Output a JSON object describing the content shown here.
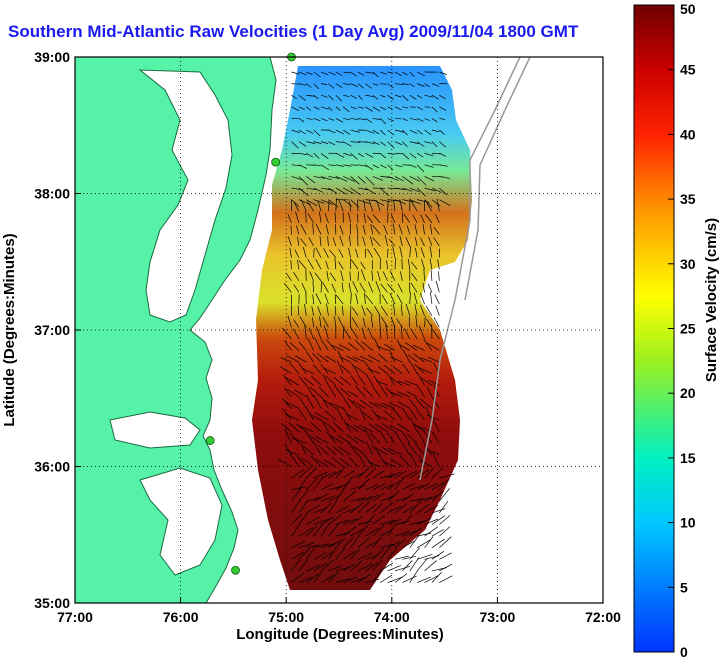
{
  "chart_data": {
    "type": "heatmap",
    "title": "Southern Mid-Atlantic Raw Velocities (1 Day Avg) 2009/11/04 1800 GMT",
    "xlabel": "Longitude (Degrees:Minutes)",
    "ylabel": "Latitude (Degrees:Minutes)",
    "xlim": [
      -77,
      -72
    ],
    "ylim": [
      35,
      39
    ],
    "x_ticks": [
      "77:00",
      "76:00",
      "75:00",
      "74:00",
      "73:00",
      "72:00"
    ],
    "y_ticks": [
      "39:00",
      "38:00",
      "37:00",
      "36:00",
      "35:00"
    ],
    "colorbar": {
      "label": "Surface Velocity (cm/s)",
      "range": [
        0,
        50
      ],
      "ticks": [
        "0",
        "5",
        "10",
        "15",
        "20",
        "25",
        "30",
        "35",
        "40",
        "45",
        "50"
      ]
    },
    "grid": true,
    "colors": {
      "land": "#55f2a8",
      "title": "#1a1aee",
      "station": "#33cc33"
    },
    "field_zones": [
      {
        "lat": [
          38.55,
          38.9
        ],
        "speed": 8
      },
      {
        "lat": [
          38.2,
          38.55
        ],
        "speed": 14
      },
      {
        "lat": [
          37.8,
          38.2
        ],
        "speed": 30
      },
      {
        "lat": [
          37.4,
          37.8
        ],
        "speed": 24
      },
      {
        "lat": [
          37.0,
          37.4
        ],
        "speed": 27
      },
      {
        "lat": [
          36.5,
          37.0
        ],
        "speed": 38
      },
      {
        "lat": [
          36.0,
          36.5
        ],
        "speed": 44
      },
      {
        "lat": [
          35.1,
          36.0
        ],
        "speed": 48
      }
    ],
    "stations": [
      {
        "name": "station-1",
        "lon": -74.95,
        "lat": 39.0
      },
      {
        "name": "station-2",
        "lon": -75.1,
        "lat": 38.23
      },
      {
        "name": "station-3",
        "lon": -75.72,
        "lat": 36.19
      },
      {
        "name": "station-4",
        "lon": -75.48,
        "lat": 35.24
      }
    ]
  }
}
